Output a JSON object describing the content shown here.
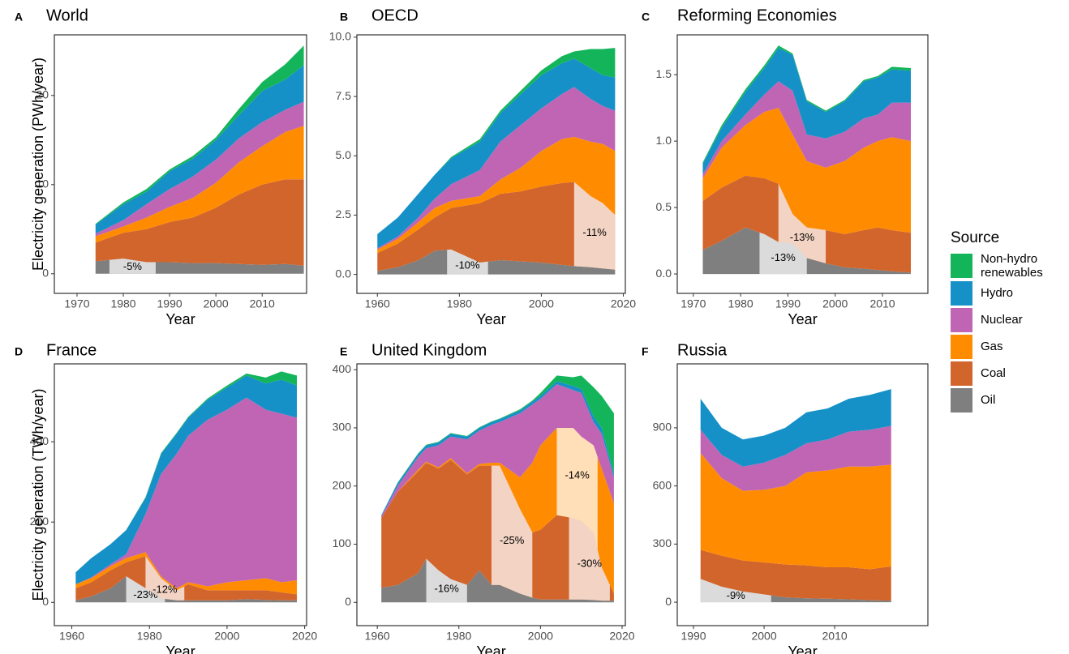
{
  "chart_data": [
    {
      "type": "stacked-area",
      "letter": "A",
      "title": "World",
      "ylabel": "Electricity generation (PWh/year)",
      "xlabel": "Year",
      "legend_title": "Source",
      "x": [
        1974,
        1980,
        1985,
        1990,
        1995,
        2000,
        2005,
        2010,
        2015,
        2019
      ],
      "xlim": [
        1965.1,
        2019.6
      ],
      "xticks": [
        1970,
        1980,
        1990,
        2000,
        2010
      ],
      "ylim": [
        -2.2,
        26.8
      ],
      "yticks": [
        0,
        10,
        20
      ],
      "series": [
        {
          "name": "Oil",
          "color": "#7f7f7f",
          "values": [
            1.4,
            1.7,
            1.3,
            1.3,
            1.2,
            1.2,
            1.1,
            1.0,
            1.1,
            0.9
          ]
        },
        {
          "name": "Coal",
          "color": "#d2652b",
          "values": [
            2.1,
            2.9,
            3.7,
            4.5,
            5.1,
            6.2,
            7.8,
            9.0,
            9.5,
            9.7
          ]
        },
        {
          "name": "Gas",
          "color": "#ff8c00",
          "values": [
            0.7,
            0.7,
            1.3,
            1.7,
            2.2,
            2.8,
            3.6,
            4.3,
            5.3,
            6.0
          ]
        },
        {
          "name": "Nuclear",
          "color": "#c065b4",
          "values": [
            0.3,
            0.7,
            1.5,
            2.0,
            2.4,
            2.6,
            2.7,
            2.7,
            2.5,
            2.7
          ]
        },
        {
          "name": "Hydro",
          "color": "#1591c8",
          "values": [
            1.0,
            1.8,
            1.4,
            2.0,
            2.0,
            2.2,
            2.6,
            3.5,
            3.4,
            4.1
          ]
        },
        {
          "name": "Non-hydro renewables",
          "color": "#14b55a",
          "values": [
            0.1,
            0.2,
            0.3,
            0.2,
            0.3,
            0.3,
            0.7,
            1.0,
            1.7,
            2.2
          ]
        }
      ],
      "annotations": [
        {
          "label": "-5%",
          "x": [
            1977,
            1987
          ],
          "series": 0
        }
      ]
    },
    {
      "type": "stacked-area",
      "letter": "B",
      "title": "OECD",
      "xlabel": "Year",
      "x": [
        1960,
        1965,
        1970,
        1974,
        1978,
        1985,
        1990,
        1995,
        2000,
        2005,
        2008,
        2012,
        2015,
        2018
      ],
      "xlim": [
        1955,
        2020.5
      ],
      "xticks": [
        1960,
        1980,
        2000,
        2020
      ],
      "ylim": [
        -0.8,
        10.1
      ],
      "yticks": [
        {
          "value": 0,
          "label": "0.0"
        },
        2.5,
        {
          "value": 5,
          "label": "5.0"
        },
        7.5,
        {
          "value": 10,
          "label": "10.0"
        }
      ],
      "series": [
        {
          "name": "Oil",
          "color": "#7f7f7f",
          "values": [
            0.15,
            0.3,
            0.6,
            1.0,
            1.05,
            0.5,
            0.6,
            0.55,
            0.5,
            0.4,
            0.35,
            0.3,
            0.25,
            0.2
          ]
        },
        {
          "name": "Coal",
          "color": "#d2652b",
          "values": [
            0.75,
            1.0,
            1.3,
            1.4,
            1.75,
            2.5,
            2.8,
            2.95,
            3.2,
            3.45,
            3.55,
            3.0,
            2.75,
            2.3
          ]
        },
        {
          "name": "Gas",
          "color": "#ff8c00",
          "values": [
            0.15,
            0.2,
            0.3,
            0.4,
            0.3,
            0.3,
            0.6,
            1.0,
            1.5,
            1.85,
            1.9,
            2.3,
            2.5,
            2.7
          ]
        },
        {
          "name": "Nuclear",
          "color": "#c065b4",
          "values": [
            0.05,
            0.1,
            0.2,
            0.4,
            0.7,
            1.1,
            1.6,
            1.8,
            1.8,
            1.9,
            2.1,
            1.8,
            1.6,
            1.7
          ]
        },
        {
          "name": "Hydro",
          "color": "#1591c8",
          "values": [
            0.6,
            0.8,
            1.0,
            1.0,
            1.1,
            1.2,
            1.2,
            1.3,
            1.4,
            1.3,
            1.2,
            1.3,
            1.3,
            1.4
          ]
        },
        {
          "name": "Non-hydro renewables",
          "color": "#14b55a",
          "values": [
            0,
            0,
            0,
            0,
            0.05,
            0.1,
            0.1,
            0.15,
            0.2,
            0.3,
            0.3,
            0.8,
            1.1,
            1.25
          ]
        }
      ],
      "annotations": [
        {
          "label": "-10%",
          "x": [
            1977,
            1987
          ],
          "series": 0
        },
        {
          "label": "-11%",
          "x": [
            2008,
            2018
          ],
          "series": 1
        }
      ]
    },
    {
      "type": "stacked-area",
      "letter": "C",
      "title": "Reforming Economies",
      "xlabel": "Year",
      "x": [
        1972,
        1976,
        1981,
        1985,
        1988,
        1991,
        1994,
        1998,
        2002,
        2006,
        2009,
        2012,
        2016
      ],
      "xlim": [
        1966.6,
        2019.6
      ],
      "xticks": [
        1970,
        1980,
        1990,
        2000,
        2010
      ],
      "ylim": [
        -0.146,
        1.8
      ],
      "yticks": [
        {
          "value": 0,
          "label": "0.0"
        },
        0.5,
        {
          "value": 1,
          "label": "1.0"
        },
        1.5
      ],
      "series": [
        {
          "name": "Oil",
          "color": "#7f7f7f",
          "values": [
            0.18,
            0.25,
            0.35,
            0.3,
            0.24,
            0.23,
            0.12,
            0.08,
            0.05,
            0.04,
            0.03,
            0.02,
            0.01
          ]
        },
        {
          "name": "Coal",
          "color": "#d2652b",
          "values": [
            0.37,
            0.4,
            0.39,
            0.42,
            0.44,
            0.22,
            0.23,
            0.25,
            0.25,
            0.29,
            0.32,
            0.31,
            0.3
          ]
        },
        {
          "name": "Gas",
          "color": "#ff8c00",
          "values": [
            0.17,
            0.3,
            0.38,
            0.5,
            0.57,
            0.6,
            0.5,
            0.47,
            0.55,
            0.62,
            0.65,
            0.7,
            0.69
          ]
        },
        {
          "name": "Nuclear",
          "color": "#c065b4",
          "values": [
            0.03,
            0.05,
            0.08,
            0.13,
            0.2,
            0.33,
            0.2,
            0.22,
            0.22,
            0.22,
            0.2,
            0.26,
            0.29
          ]
        },
        {
          "name": "Hydro",
          "color": "#1591c8",
          "values": [
            0.08,
            0.1,
            0.17,
            0.2,
            0.25,
            0.27,
            0.25,
            0.2,
            0.23,
            0.28,
            0.28,
            0.25,
            0.24
          ]
        },
        {
          "name": "Non-hydro renewables",
          "color": "#14b55a",
          "values": [
            0.01,
            0.02,
            0.02,
            0.02,
            0.02,
            0.01,
            0.01,
            0.01,
            0.01,
            0.01,
            0.01,
            0.02,
            0.02
          ]
        }
      ],
      "annotations": [
        {
          "label": "-13%",
          "x": [
            1984,
            1994
          ],
          "series": 0
        },
        {
          "label": "-13%",
          "x": [
            1988,
            1998
          ],
          "series": 1
        }
      ]
    },
    {
      "type": "stacked-area",
      "letter": "D",
      "title": "France",
      "ylabel": "Electricity generation (TWh/year)",
      "xlabel": "Year",
      "x": [
        1961,
        1965,
        1970,
        1974,
        1979,
        1983,
        1987,
        1990,
        1995,
        2000,
        2005,
        2010,
        2014,
        2018
      ],
      "xlim": [
        1955.5,
        2020.5
      ],
      "xticks": [
        1960,
        1980,
        2000,
        2020
      ],
      "ylim": [
        -58,
        594
      ],
      "yticks": [
        0,
        200,
        400
      ],
      "series": [
        {
          "name": "Oil",
          "color": "#7f7f7f",
          "values": [
            5,
            15,
            35,
            65,
            35,
            10,
            5,
            5,
            5,
            5,
            8,
            6,
            5,
            5
          ]
        },
        {
          "name": "Coal",
          "color": "#d2652b",
          "values": [
            30,
            35,
            45,
            35,
            80,
            50,
            25,
            40,
            25,
            25,
            22,
            24,
            20,
            15
          ]
        },
        {
          "name": "Gas",
          "color": "#ff8c00",
          "values": [
            10,
            10,
            10,
            10,
            10,
            5,
            5,
            5,
            10,
            20,
            25,
            30,
            25,
            35
          ]
        },
        {
          "name": "Nuclear",
          "color": "#c065b4",
          "values": [
            0,
            2,
            5,
            10,
            95,
            255,
            335,
            365,
            415,
            430,
            455,
            420,
            420,
            405
          ]
        },
        {
          "name": "Hydro",
          "color": "#1591c8",
          "values": [
            30,
            48,
            50,
            60,
            40,
            50,
            50,
            45,
            50,
            55,
            55,
            65,
            85,
            80
          ]
        },
        {
          "name": "Non-hydro renewables",
          "color": "#14b55a",
          "values": [
            0,
            0,
            0,
            0,
            2,
            2,
            2,
            2,
            3,
            5,
            5,
            15,
            20,
            25
          ]
        }
      ],
      "annotations": [
        {
          "label": "-23%",
          "x": [
            1974,
            1984
          ],
          "series": 0
        },
        {
          "label": "-12%",
          "x": [
            1979,
            1989
          ],
          "series": 1
        }
      ]
    },
    {
      "type": "stacked-area",
      "letter": "E",
      "title": "United Kingdom",
      "xlabel": "Year",
      "x": [
        1961,
        1965,
        1970,
        1972,
        1975,
        1978,
        1982,
        1985,
        1988,
        1990,
        1995,
        1998,
        2000,
        2004,
        2008,
        2010,
        2013,
        2015,
        2018
      ],
      "xlim": [
        1955,
        2020.8
      ],
      "xticks": [
        1960,
        1980,
        2000,
        2020
      ],
      "ylim": [
        -40,
        410
      ],
      "yticks": [
        0,
        100,
        200,
        300,
        400
      ],
      "series": [
        {
          "name": "Oil",
          "color": "#7f7f7f",
          "values": [
            25,
            30,
            50,
            75,
            55,
            40,
            30,
            55,
            30,
            30,
            15,
            8,
            5,
            5,
            5,
            5,
            4,
            3,
            3
          ]
        },
        {
          "name": "Coal",
          "color": "#d2652b",
          "values": [
            120,
            160,
            175,
            165,
            175,
            205,
            190,
            180,
            205,
            205,
            145,
            112,
            120,
            145,
            140,
            135,
            116,
            57,
            12
          ]
        },
        {
          "name": "Gas",
          "color": "#ff8c00",
          "values": [
            0,
            0,
            3,
            2,
            2,
            3,
            2,
            3,
            5,
            5,
            55,
            120,
            145,
            150,
            155,
            145,
            150,
            170,
            155
          ]
        },
        {
          "name": "Nuclear",
          "color": "#c065b4",
          "values": [
            3,
            10,
            22,
            23,
            38,
            37,
            58,
            57,
            65,
            70,
            110,
            100,
            80,
            75,
            65,
            75,
            40,
            60,
            45
          ]
        },
        {
          "name": "Hydro",
          "color": "#1591c8",
          "values": [
            2,
            5,
            5,
            5,
            5,
            5,
            5,
            5,
            5,
            5,
            5,
            5,
            5,
            5,
            7,
            7,
            10,
            10,
            7
          ]
        },
        {
          "name": "Non-hydro renewables",
          "color": "#14b55a",
          "values": [
            0,
            1,
            1,
            1,
            1,
            1,
            1,
            1,
            1,
            1,
            2,
            2,
            5,
            10,
            15,
            23,
            50,
            55,
            103
          ]
        }
      ],
      "annotations": [
        {
          "label": "-16%",
          "x": [
            1972,
            1982
          ],
          "series": 0
        },
        {
          "label": "-25%",
          "x": [
            1988,
            1998
          ],
          "series": 1
        },
        {
          "label": "-14%",
          "x": [
            2004,
            2014
          ],
          "series": 2
        },
        {
          "label": "-30%",
          "x": [
            2007,
            2017
          ],
          "series": 1
        }
      ]
    },
    {
      "type": "stacked-area",
      "letter": "F",
      "title": "Russia",
      "xlabel": "Year",
      "x": [
        1991,
        1994,
        1997,
        2000,
        2003,
        2006,
        2009,
        2012,
        2015,
        2018
      ],
      "xlim": [
        1987.7,
        2023.2
      ],
      "xticks": [
        1990,
        2000,
        2010
      ],
      "ylim": [
        -121,
        1230
      ],
      "yticks": [
        0,
        300,
        600,
        900
      ],
      "series": [
        {
          "name": "Oil",
          "color": "#7f7f7f",
          "values": [
            120,
            80,
            55,
            40,
            25,
            20,
            18,
            15,
            10,
            8
          ]
        },
        {
          "name": "Coal",
          "color": "#d2652b",
          "values": [
            150,
            160,
            160,
            165,
            170,
            170,
            162,
            165,
            160,
            177
          ]
        },
        {
          "name": "Gas",
          "color": "#ff8c00",
          "values": [
            500,
            400,
            360,
            375,
            405,
            480,
            500,
            520,
            530,
            525
          ]
        },
        {
          "name": "Nuclear",
          "color": "#c065b4",
          "values": [
            120,
            120,
            125,
            140,
            160,
            150,
            160,
            180,
            190,
            200
          ]
        },
        {
          "name": "Hydro",
          "color": "#1591c8",
          "values": [
            160,
            140,
            140,
            140,
            140,
            160,
            160,
            170,
            180,
            190
          ]
        },
        {
          "name": "Non-hydro renewables",
          "color": "#14b55a",
          "values": [
            0,
            0,
            0,
            0,
            0,
            0,
            0,
            0,
            0,
            0
          ]
        }
      ],
      "annotations": [
        {
          "label": "-9%",
          "x": [
            1991,
            2001
          ],
          "series": 0
        }
      ]
    }
  ]
}
